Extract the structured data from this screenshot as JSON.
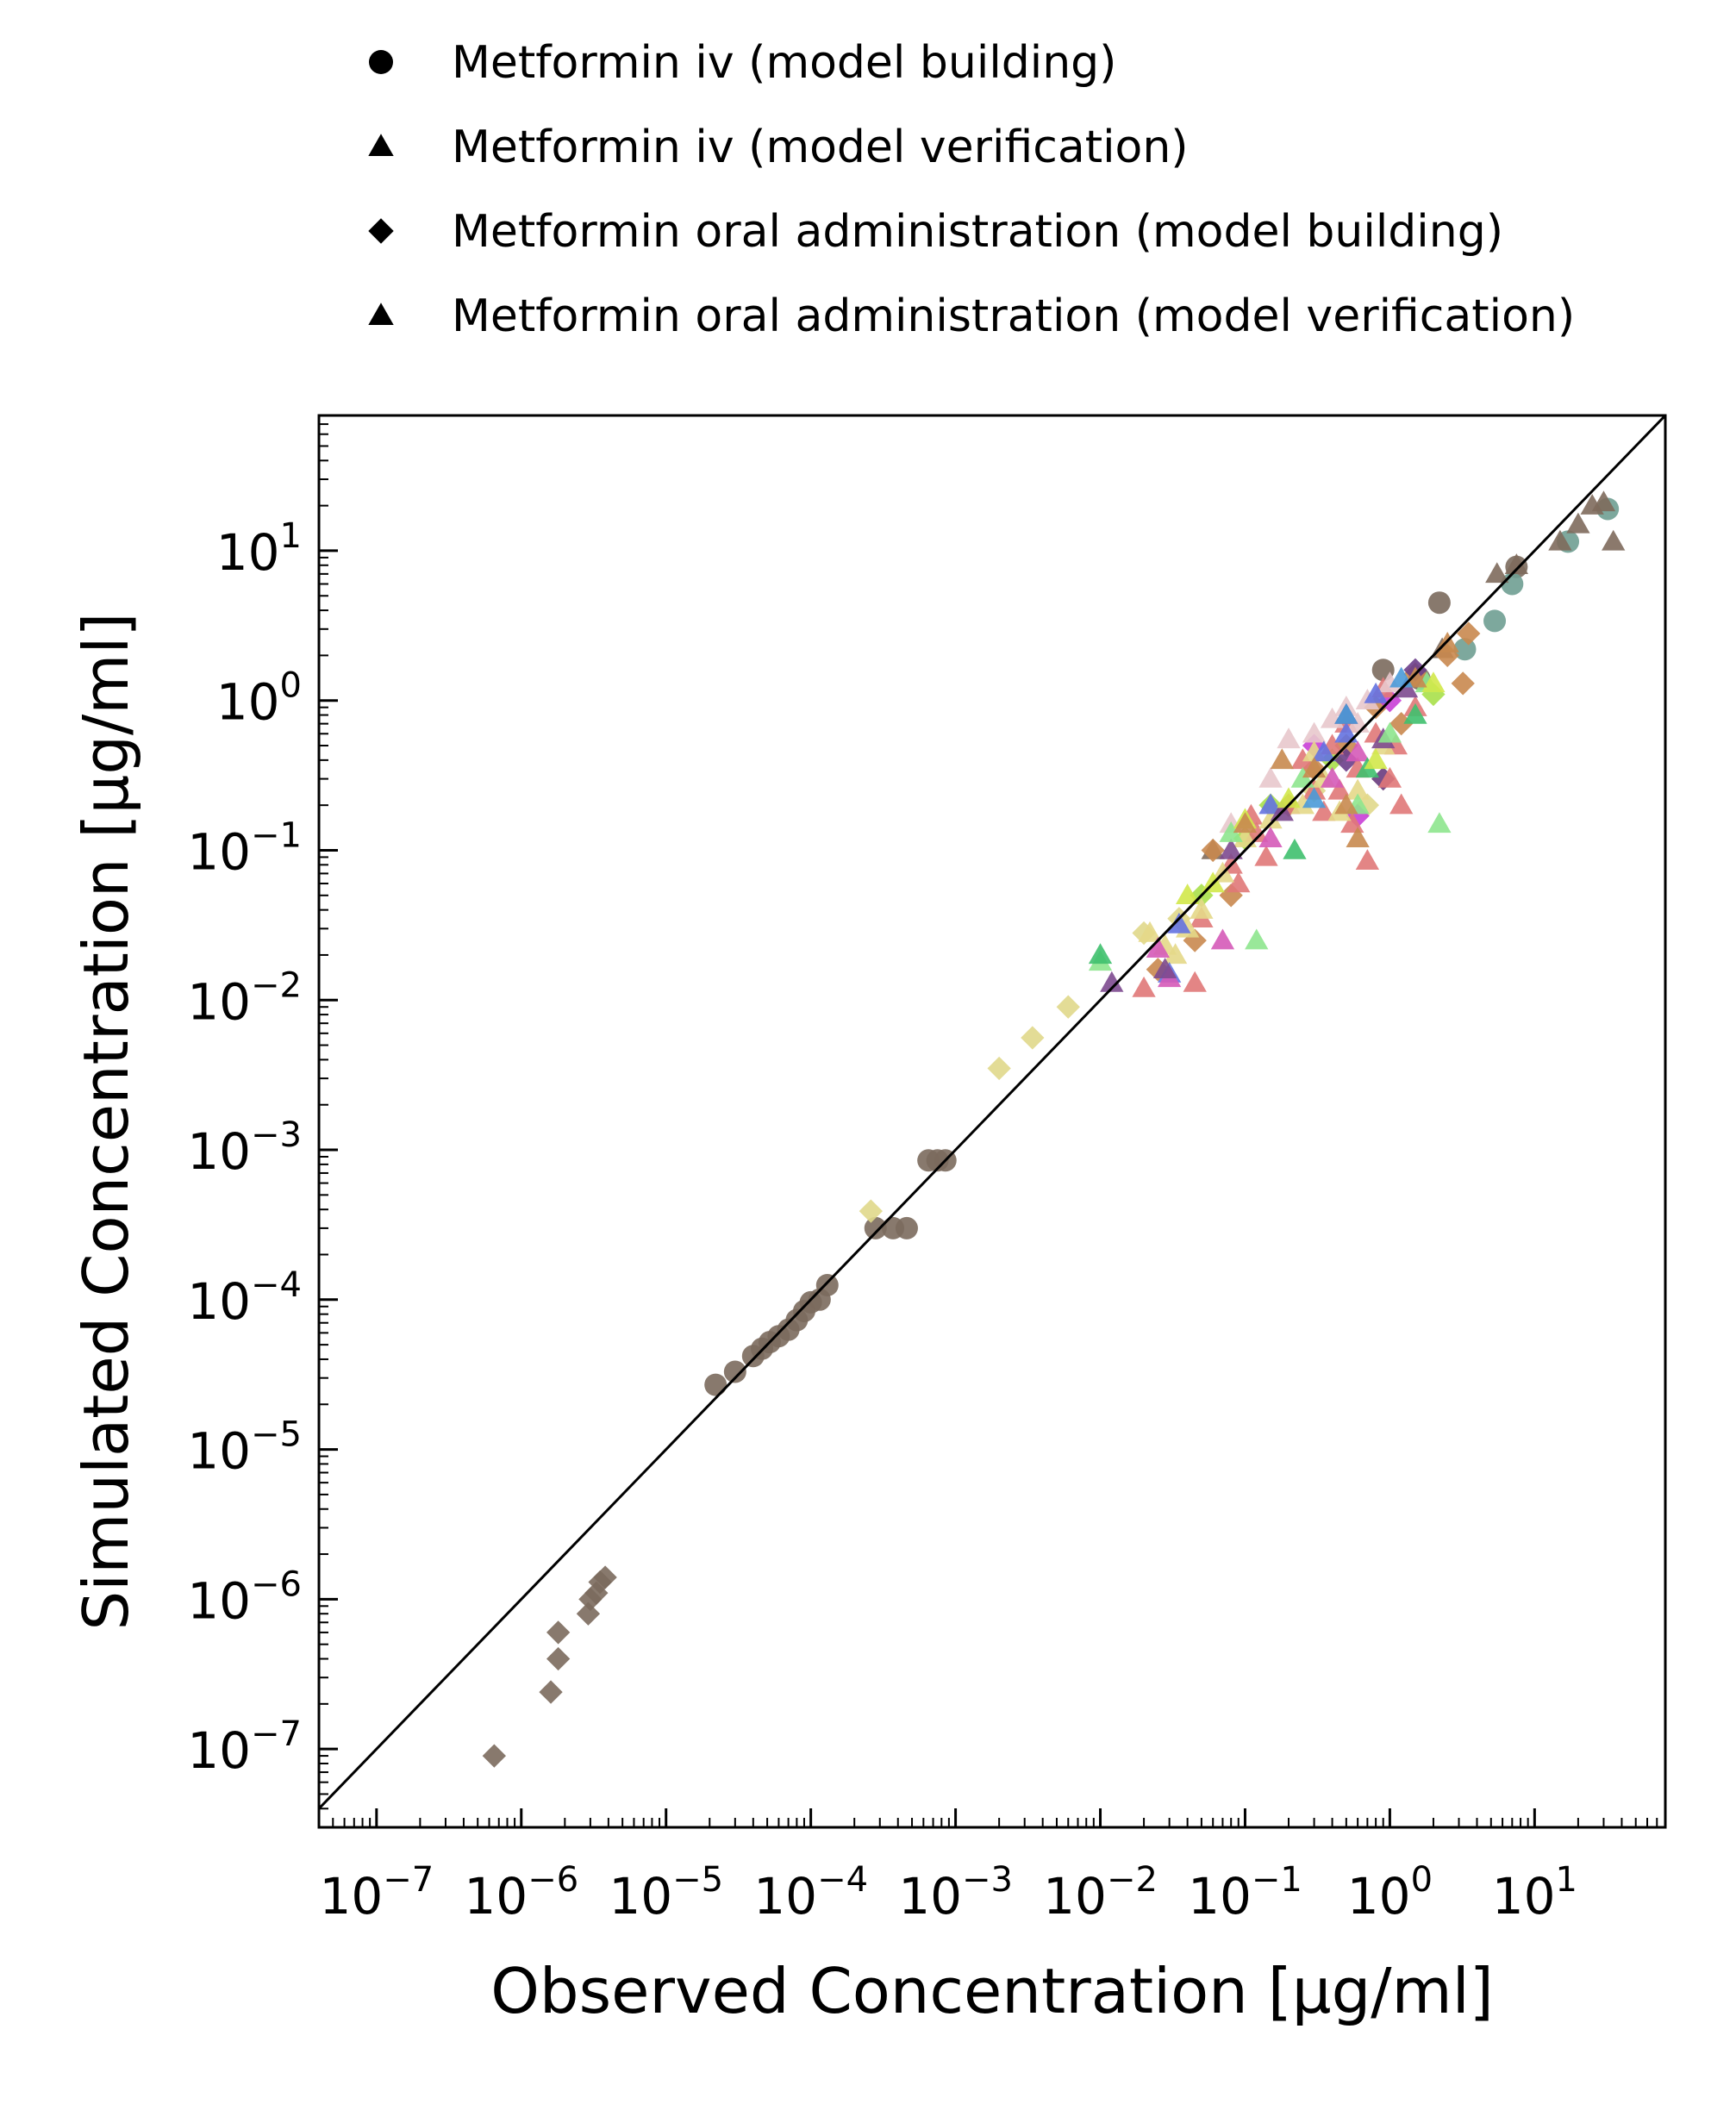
{
  "chart_data": {
    "type": "scatter",
    "title": "",
    "xlabel": "Observed Concentration [µg/ml]",
    "ylabel": "Simulated Concentration [µg/ml]",
    "xscale": "log",
    "yscale": "log",
    "xlim": [
      4e-08,
      80
    ],
    "ylim": [
      3e-08,
      80
    ],
    "grid": false,
    "legend_position": "top",
    "identity_line": true,
    "x_ticks": [
      {
        "value": 1e-07,
        "base": "10",
        "exp": "−7"
      },
      {
        "value": 1e-06,
        "base": "10",
        "exp": "−6"
      },
      {
        "value": 1e-05,
        "base": "10",
        "exp": "−5"
      },
      {
        "value": 0.0001,
        "base": "10",
        "exp": "−4"
      },
      {
        "value": 0.001,
        "base": "10",
        "exp": "−3"
      },
      {
        "value": 0.01,
        "base": "10",
        "exp": "−2"
      },
      {
        "value": 0.1,
        "base": "10",
        "exp": "−1"
      },
      {
        "value": 1,
        "base": "10",
        "exp": "0"
      },
      {
        "value": 10,
        "base": "10",
        "exp": "1"
      }
    ],
    "y_ticks": [
      {
        "value": 1e-07,
        "base": "10",
        "exp": "−7"
      },
      {
        "value": 1e-06,
        "base": "10",
        "exp": "−6"
      },
      {
        "value": 1e-05,
        "base": "10",
        "exp": "−5"
      },
      {
        "value": 0.0001,
        "base": "10",
        "exp": "−4"
      },
      {
        "value": 0.001,
        "base": "10",
        "exp": "−3"
      },
      {
        "value": 0.01,
        "base": "10",
        "exp": "−2"
      },
      {
        "value": 0.1,
        "base": "10",
        "exp": "−1"
      },
      {
        "value": 1,
        "base": "10",
        "exp": "0"
      },
      {
        "value": 10,
        "base": "10",
        "exp": "1"
      }
    ],
    "series": [
      {
        "name": "Metformin iv (model building)",
        "marker": "circle",
        "color": "#7b6a5d",
        "points": [
          [
            2.2e-05,
            2.7e-05
          ],
          [
            3e-05,
            3.3e-05
          ],
          [
            4e-05,
            4.2e-05
          ],
          [
            4.6e-05,
            4.7e-05
          ],
          [
            5.2e-05,
            5.2e-05
          ],
          [
            6e-05,
            5.7e-05
          ],
          [
            7e-05,
            6.3e-05
          ],
          [
            8e-05,
            7.3e-05
          ],
          [
            9e-05,
            8.4e-05
          ],
          [
            0.0001,
            9.6e-05
          ],
          [
            0.000115,
            0.0001
          ],
          [
            0.00013,
            0.000125
          ],
          [
            0.00028,
            0.0003
          ],
          [
            0.00037,
            0.0003
          ],
          [
            0.00046,
            0.0003
          ],
          [
            0.00065,
            0.00085
          ],
          [
            0.00075,
            0.00085
          ],
          [
            0.00085,
            0.00085
          ],
          [
            0.9,
            1.6
          ],
          [
            1.6,
            1.4
          ],
          [
            2.2,
            4.5
          ],
          [
            7.5,
            7.8
          ]
        ]
      },
      {
        "name": "Metformin iv (model building)",
        "marker": "circle",
        "color": "#6f9e92",
        "points": [
          [
            3.3,
            2.2
          ],
          [
            5.3,
            3.4
          ],
          [
            7.0,
            6.0
          ],
          [
            17,
            11.5
          ],
          [
            32,
            19
          ]
        ]
      },
      {
        "name": "Metformin iv (model verification)",
        "marker": "triangle",
        "color": "#7e6a5c",
        "points": [
          [
            7.5,
            8.0
          ],
          [
            5.5,
            7.0
          ],
          [
            15,
            11.5
          ],
          [
            20,
            15
          ],
          [
            25,
            20
          ],
          [
            30,
            21
          ],
          [
            35,
            11.5
          ],
          [
            2.3,
            2.2
          ],
          [
            0.06,
            0.1
          ]
        ]
      },
      {
        "name": "Metformin oral administration (model building)",
        "marker": "diamond",
        "color": "#7b6a5d",
        "points": [
          [
            6.5e-07,
            9e-08
          ],
          [
            1.6e-06,
            2.4e-07
          ],
          [
            1.8e-06,
            4e-07
          ],
          [
            1.8e-06,
            6e-07
          ],
          [
            2.9e-06,
            8e-07
          ],
          [
            3e-06,
            1e-06
          ],
          [
            3.3e-06,
            1.1e-06
          ],
          [
            3.5e-06,
            1.3e-06
          ],
          [
            3.8e-06,
            1.4e-06
          ]
        ]
      },
      {
        "name": "Metformin oral administration (model building)",
        "marker": "diamond",
        "color": "#e0d88b",
        "points": [
          [
            0.002,
            0.0035
          ],
          [
            0.0034,
            0.0056
          ],
          [
            0.006,
            0.009
          ],
          [
            0.00026,
            0.00039
          ],
          [
            0.035,
            0.035
          ],
          [
            0.9,
            0.3
          ],
          [
            0.7,
            0.2
          ],
          [
            0.3,
            0.25
          ],
          [
            0.02,
            0.028
          ]
        ]
      },
      {
        "name": "Metformin oral administration (model building)",
        "marker": "diamond",
        "color": "#c9884f",
        "points": [
          [
            0.08,
            0.05
          ],
          [
            0.06,
            0.1
          ],
          [
            0.2,
            0.2
          ],
          [
            0.3,
            0.35
          ],
          [
            0.5,
            0.5
          ],
          [
            0.8,
            0.9
          ],
          [
            1.5,
            1.5
          ],
          [
            2.5,
            2.0
          ],
          [
            3.2,
            1.3
          ],
          [
            0.025,
            0.016
          ],
          [
            0.045,
            0.025
          ],
          [
            3.5,
            2.8
          ],
          [
            1.2,
            0.7
          ]
        ]
      },
      {
        "name": "Metformin oral administration (model building)",
        "marker": "diamond",
        "color": "#c93fd6",
        "points": [
          [
            0.6,
            0.17
          ],
          [
            0.3,
            0.5
          ],
          [
            1.0,
            1.0
          ]
        ]
      },
      {
        "name": "Metformin oral administration (model building)",
        "marker": "diamond",
        "color": "#a8e04a",
        "points": [
          [
            0.1,
            0.12
          ],
          [
            0.15,
            0.2
          ],
          [
            0.4,
            0.4
          ],
          [
            2.0,
            1.1
          ],
          [
            0.05,
            0.05
          ]
        ]
      },
      {
        "name": "Metformin oral administration (model building)",
        "marker": "diamond",
        "color": "#6b3e8a",
        "points": [
          [
            0.5,
            0.4
          ],
          [
            1.5,
            1.6
          ],
          [
            0.9,
            0.3
          ]
        ]
      },
      {
        "name": "Metformin oral administration (model verification)",
        "marker": "triangle",
        "color": "#e07878",
        "points": [
          [
            0.02,
            0.012
          ],
          [
            0.045,
            0.013
          ],
          [
            0.08,
            0.08
          ],
          [
            0.12,
            0.13
          ],
          [
            0.14,
            0.09
          ],
          [
            0.2,
            0.2
          ],
          [
            0.3,
            0.25
          ],
          [
            0.4,
            0.5
          ],
          [
            0.55,
            0.15
          ],
          [
            0.6,
            0.35
          ],
          [
            0.7,
            0.085
          ],
          [
            0.8,
            0.6
          ],
          [
            1.0,
            0.3
          ],
          [
            1.2,
            0.2
          ],
          [
            1.5,
            0.9
          ],
          [
            0.25,
            0.4
          ],
          [
            0.35,
            0.18
          ],
          [
            0.05,
            0.035
          ],
          [
            0.09,
            0.06
          ],
          [
            0.11,
            0.17
          ],
          [
            0.5,
            0.7
          ],
          [
            0.9,
            1.2
          ],
          [
            1.1,
            0.5
          ],
          [
            0.45,
            0.25
          ]
        ]
      },
      {
        "name": "Metformin oral administration (model verification)",
        "marker": "triangle",
        "color": "#e8c8cc",
        "points": [
          [
            0.2,
            0.55
          ],
          [
            0.3,
            0.6
          ],
          [
            0.5,
            0.9
          ],
          [
            0.7,
            1.0
          ],
          [
            0.4,
            0.75
          ],
          [
            1.0,
            1.3
          ],
          [
            0.6,
            0.7
          ],
          [
            0.15,
            0.3
          ],
          [
            0.08,
            0.15
          ]
        ]
      },
      {
        "name": "Metformin oral administration (model verification)",
        "marker": "triangle",
        "color": "#e4d888",
        "points": [
          [
            0.022,
            0.028
          ],
          [
            0.028,
            0.023
          ],
          [
            0.033,
            0.02
          ],
          [
            0.04,
            0.03
          ],
          [
            0.07,
            0.07
          ],
          [
            0.1,
            0.12
          ],
          [
            0.15,
            0.16
          ],
          [
            0.25,
            0.2
          ],
          [
            0.35,
            0.3
          ],
          [
            0.45,
            0.18
          ],
          [
            0.6,
            0.25
          ],
          [
            0.9,
            0.5
          ],
          [
            0.05,
            0.04
          ],
          [
            0.3,
            0.45
          ]
        ]
      },
      {
        "name": "Metformin oral administration (model verification)",
        "marker": "triangle",
        "color": "#6472e0",
        "points": [
          [
            0.03,
            0.015
          ],
          [
            0.035,
            0.032
          ],
          [
            0.15,
            0.2
          ],
          [
            0.35,
            0.45
          ],
          [
            0.5,
            0.6
          ],
          [
            0.8,
            1.1
          ]
        ]
      },
      {
        "name": "Metformin oral administration (model verification)",
        "marker": "triangle",
        "color": "#d55ab8",
        "points": [
          [
            0.025,
            0.022
          ],
          [
            0.07,
            0.025
          ],
          [
            0.15,
            0.12
          ],
          [
            0.4,
            0.3
          ],
          [
            0.6,
            0.45
          ],
          [
            0.03,
            0.014
          ]
        ]
      },
      {
        "name": "Metformin oral administration (model verification)",
        "marker": "triangle",
        "color": "#7d4a8f",
        "points": [
          [
            0.012,
            0.013
          ],
          [
            0.028,
            0.016
          ],
          [
            0.08,
            0.1
          ],
          [
            0.18,
            0.18
          ],
          [
            0.5,
            0.8
          ],
          [
            1.3,
            1.2
          ],
          [
            0.9,
            0.55
          ]
        ]
      },
      {
        "name": "Metformin oral administration (model verification)",
        "marker": "triangle",
        "color": "#8ee68e",
        "points": [
          [
            0.01,
            0.018
          ],
          [
            0.25,
            0.3
          ],
          [
            0.6,
            0.2
          ],
          [
            1.0,
            0.6
          ],
          [
            2.2,
            0.15
          ],
          [
            1.8,
            1.3
          ],
          [
            0.08,
            0.13
          ],
          [
            0.12,
            0.025
          ]
        ]
      },
      {
        "name": "Metformin oral administration (model verification)",
        "marker": "triangle",
        "color": "#3fc06e",
        "points": [
          [
            0.01,
            0.02
          ],
          [
            0.22,
            0.1
          ],
          [
            0.7,
            0.35
          ],
          [
            1.5,
            0.8
          ]
        ]
      },
      {
        "name": "Metformin oral administration (model verification)",
        "marker": "triangle",
        "color": "#d2e84a",
        "points": [
          [
            0.04,
            0.05
          ],
          [
            0.06,
            0.06
          ],
          [
            0.2,
            0.22
          ],
          [
            0.8,
            0.4
          ],
          [
            2.0,
            1.3
          ],
          [
            0.1,
            0.16
          ]
        ]
      },
      {
        "name": "Metformin oral administration (model verification)",
        "marker": "triangle",
        "color": "#c8894f",
        "points": [
          [
            0.1,
            0.15
          ],
          [
            0.3,
            0.35
          ],
          [
            0.6,
            0.12
          ],
          [
            1.5,
            1.4
          ],
          [
            2.5,
            2.4
          ],
          [
            0.18,
            0.4
          ],
          [
            0.5,
            0.2
          ]
        ]
      },
      {
        "name": "Metformin oral administration (model verification)",
        "marker": "triangle",
        "color": "#4a9ad8",
        "points": [
          [
            0.5,
            0.8
          ],
          [
            0.3,
            0.22
          ],
          [
            1.2,
            1.4
          ]
        ]
      }
    ],
    "legend": [
      {
        "label": "Metformin iv (model building)",
        "marker": "circle",
        "color": "#000000"
      },
      {
        "label": "Metformin iv (model verification)",
        "marker": "triangle",
        "color": "#000000"
      },
      {
        "label": "Metformin oral administration (model building)",
        "marker": "diamond",
        "color": "#000000"
      },
      {
        "label": "Metformin oral administration (model verification)",
        "marker": "triangle",
        "color": "#000000"
      }
    ]
  }
}
